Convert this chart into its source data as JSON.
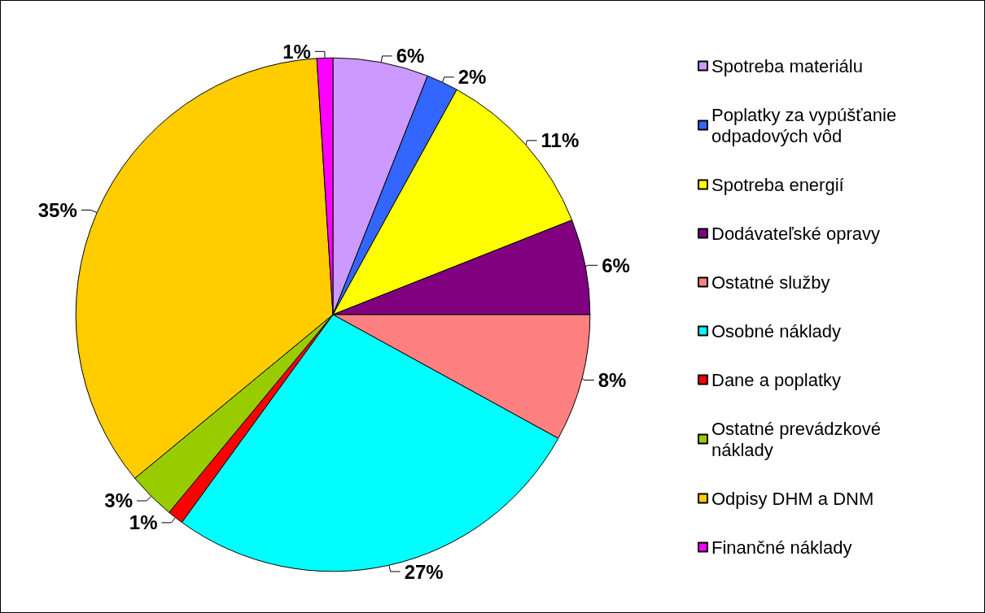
{
  "chart_data": {
    "type": "pie",
    "categories": [
      "Spotreba materiálu",
      "Poplatky za vypúšťanie odpadových vôd",
      "Spotreba energií",
      "Dodávateľské opravy",
      "Ostatné služby",
      "Osobné náklady",
      "Dane a poplatky",
      "Ostatné prevádzkové náklady",
      "Odpisy DHM a DNM",
      "Finančné náklady"
    ],
    "values": [
      6,
      2,
      11,
      6,
      8,
      27,
      1,
      3,
      35,
      1
    ],
    "value_labels": [
      "6%",
      "2%",
      "11%",
      "6%",
      "8%",
      "27%",
      "1%",
      "3%",
      "35%",
      "1%"
    ],
    "colors": [
      "#cc99ff",
      "#3366ff",
      "#ffff00",
      "#800080",
      "#ff8080",
      "#00ffff",
      "#ff0000",
      "#99cc00",
      "#ffcc00",
      "#ff00ff"
    ],
    "legend": "right"
  }
}
